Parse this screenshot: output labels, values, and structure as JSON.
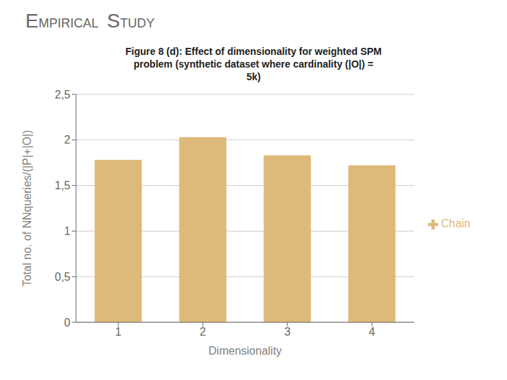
{
  "chart_data": {
    "type": "bar",
    "title": "Figure 8 (d): Effect of dimensionality for weighted SPM\nproblem (synthetic dataset where cardinality (|O|) =\n5k)",
    "annotations": [
      "EMPIRICAL STUDY"
    ],
    "xlabel": "Dimensionality",
    "ylabel": "Total no. of NNqueries/(|P|+|O|)",
    "categories": [
      "1",
      "2",
      "3",
      "4"
    ],
    "series": [
      {
        "name": "Chain",
        "color": "#ddb97a",
        "values": [
          1.78,
          2.03,
          1.83,
          1.72
        ]
      }
    ],
    "ylim": [
      0,
      2.5
    ],
    "yticks": [
      0,
      {
        "value": 0.5,
        "label": "0,5"
      },
      1,
      {
        "value": 1.5,
        "label": "1,5"
      },
      2,
      {
        "value": 2.5,
        "label": "2,5"
      }
    ],
    "grid": true,
    "legend": "right"
  }
}
